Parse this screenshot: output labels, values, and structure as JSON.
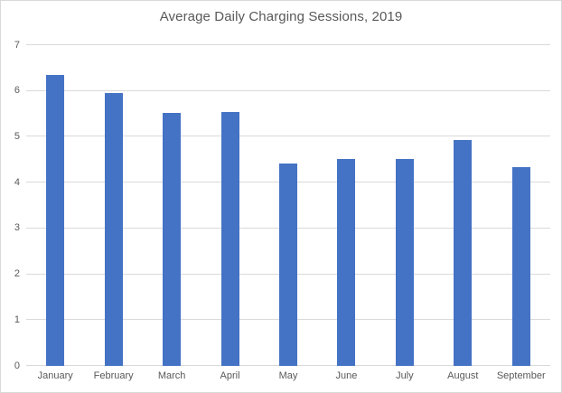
{
  "chart_data": {
    "type": "bar",
    "title": "Average Daily Charging Sessions, 2019",
    "categories": [
      "January",
      "February",
      "March",
      "April",
      "May",
      "June",
      "July",
      "August",
      "September"
    ],
    "values": [
      6.34,
      5.96,
      5.52,
      5.55,
      4.41,
      4.52,
      4.51,
      4.93,
      4.33
    ],
    "series_name": "Average daily charging sessions",
    "xlabel": "",
    "ylabel": "",
    "ylim": [
      0,
      7
    ],
    "yticks": [
      0,
      1,
      2,
      3,
      4,
      5,
      6,
      7
    ],
    "grid": true,
    "legend": false,
    "colors": {
      "bar": "#4472C4",
      "gridline": "#D9D9D9",
      "text": "#595959",
      "border": "#D9D9D9",
      "background": "#FFFFFF"
    }
  }
}
